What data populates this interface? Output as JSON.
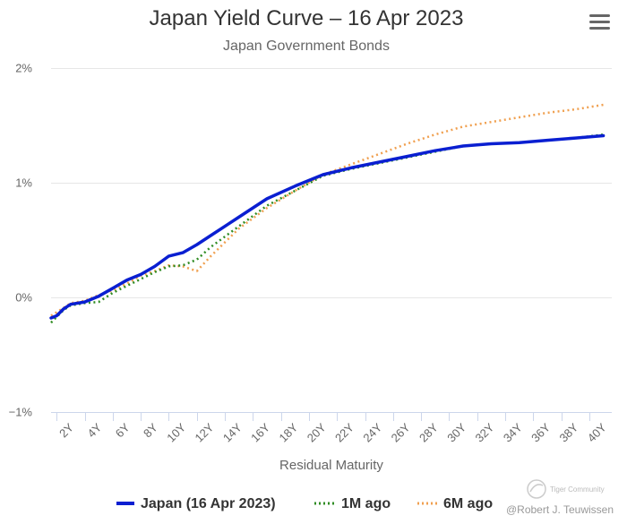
{
  "chart_data": {
    "type": "line",
    "title": "Japan Yield Curve – 16 Apr 2023",
    "subtitle": "Japan Government Bonds",
    "xlabel": "Residual Maturity",
    "ylabel": "",
    "x_unit": "years",
    "xlim": [
      0.6,
      40.6
    ],
    "ylim": [
      -1,
      2
    ],
    "yticks": [
      {
        "value": 2,
        "label": "2%"
      },
      {
        "value": 1,
        "label": "1%"
      },
      {
        "value": 0,
        "label": "0%"
      },
      {
        "value": -1,
        "label": "−1%"
      }
    ],
    "xticks": [
      {
        "value": 2,
        "label": "2Y"
      },
      {
        "value": 4,
        "label": "4Y"
      },
      {
        "value": 6,
        "label": "6Y"
      },
      {
        "value": 8,
        "label": "8Y"
      },
      {
        "value": 10,
        "label": "10Y"
      },
      {
        "value": 12,
        "label": "12Y"
      },
      {
        "value": 14,
        "label": "14Y"
      },
      {
        "value": 16,
        "label": "16Y"
      },
      {
        "value": 18,
        "label": "18Y"
      },
      {
        "value": 20,
        "label": "20Y"
      },
      {
        "value": 22,
        "label": "22Y"
      },
      {
        "value": 24,
        "label": "24Y"
      },
      {
        "value": 26,
        "label": "26Y"
      },
      {
        "value": 28,
        "label": "28Y"
      },
      {
        "value": 30,
        "label": "30Y"
      },
      {
        "value": 32,
        "label": "32Y"
      },
      {
        "value": 34,
        "label": "34Y"
      },
      {
        "value": 36,
        "label": "36Y"
      },
      {
        "value": 38,
        "label": "38Y"
      },
      {
        "value": 40,
        "label": "40Y"
      }
    ],
    "series": [
      {
        "name": "Japan (16 Apr 2023)",
        "color": "#0a1fd1",
        "style": "solid",
        "points": [
          [
            0.6,
            -0.18
          ],
          [
            1,
            -0.16
          ],
          [
            1.5,
            -0.1
          ],
          [
            2,
            -0.06
          ],
          [
            3,
            -0.04
          ],
          [
            4,
            0.01
          ],
          [
            5,
            0.08
          ],
          [
            6,
            0.15
          ],
          [
            7,
            0.2
          ],
          [
            8,
            0.27
          ],
          [
            9,
            0.36
          ],
          [
            10,
            0.39
          ],
          [
            11,
            0.46
          ],
          [
            12,
            0.54
          ],
          [
            14,
            0.7
          ],
          [
            16,
            0.86
          ],
          [
            18,
            0.97
          ],
          [
            20,
            1.07
          ],
          [
            22,
            1.13
          ],
          [
            24,
            1.18
          ],
          [
            26,
            1.23
          ],
          [
            28,
            1.28
          ],
          [
            30,
            1.32
          ],
          [
            32,
            1.34
          ],
          [
            34,
            1.35
          ],
          [
            36,
            1.37
          ],
          [
            38,
            1.39
          ],
          [
            40,
            1.41
          ]
        ]
      },
      {
        "name": "1M ago",
        "color": "#2e8b22",
        "style": "dotted",
        "points": [
          [
            0.6,
            -0.22
          ],
          [
            1,
            -0.17
          ],
          [
            1.5,
            -0.11
          ],
          [
            2,
            -0.07
          ],
          [
            3,
            -0.05
          ],
          [
            4,
            -0.04
          ],
          [
            5,
            0.04
          ],
          [
            6,
            0.1
          ],
          [
            7,
            0.16
          ],
          [
            8,
            0.22
          ],
          [
            9,
            0.27
          ],
          [
            10,
            0.28
          ],
          [
            11,
            0.33
          ],
          [
            12,
            0.44
          ],
          [
            14,
            0.62
          ],
          [
            16,
            0.8
          ],
          [
            18,
            0.93
          ],
          [
            20,
            1.06
          ],
          [
            22,
            1.12
          ],
          [
            24,
            1.17
          ],
          [
            26,
            1.22
          ],
          [
            28,
            1.27
          ],
          [
            30,
            1.32
          ],
          [
            32,
            1.34
          ],
          [
            34,
            1.35
          ],
          [
            36,
            1.37
          ],
          [
            38,
            1.39
          ],
          [
            40,
            1.42
          ]
        ]
      },
      {
        "name": "6M ago",
        "color": "#f0a050",
        "style": "dotted",
        "points": [
          [
            0.6,
            -0.16
          ],
          [
            1,
            -0.13
          ],
          [
            1.5,
            -0.09
          ],
          [
            2,
            -0.05
          ],
          [
            3,
            -0.03
          ],
          [
            4,
            0.02
          ],
          [
            5,
            0.06
          ],
          [
            6,
            0.12
          ],
          [
            7,
            0.19
          ],
          [
            8,
            0.23
          ],
          [
            9,
            0.28
          ],
          [
            10,
            0.27
          ],
          [
            11,
            0.23
          ],
          [
            12,
            0.36
          ],
          [
            14,
            0.6
          ],
          [
            16,
            0.78
          ],
          [
            18,
            0.93
          ],
          [
            20,
            1.07
          ],
          [
            22,
            1.16
          ],
          [
            24,
            1.25
          ],
          [
            26,
            1.34
          ],
          [
            28,
            1.42
          ],
          [
            30,
            1.49
          ],
          [
            32,
            1.53
          ],
          [
            34,
            1.57
          ],
          [
            36,
            1.61
          ],
          [
            38,
            1.64
          ],
          [
            40,
            1.68
          ]
        ]
      }
    ],
    "legend_position": "bottom-center"
  },
  "branding": {
    "logo_text": "Tiger Community",
    "credit": "@Robert J. Teuwissen"
  },
  "menu": {
    "icon": "hamburger-menu-icon"
  }
}
